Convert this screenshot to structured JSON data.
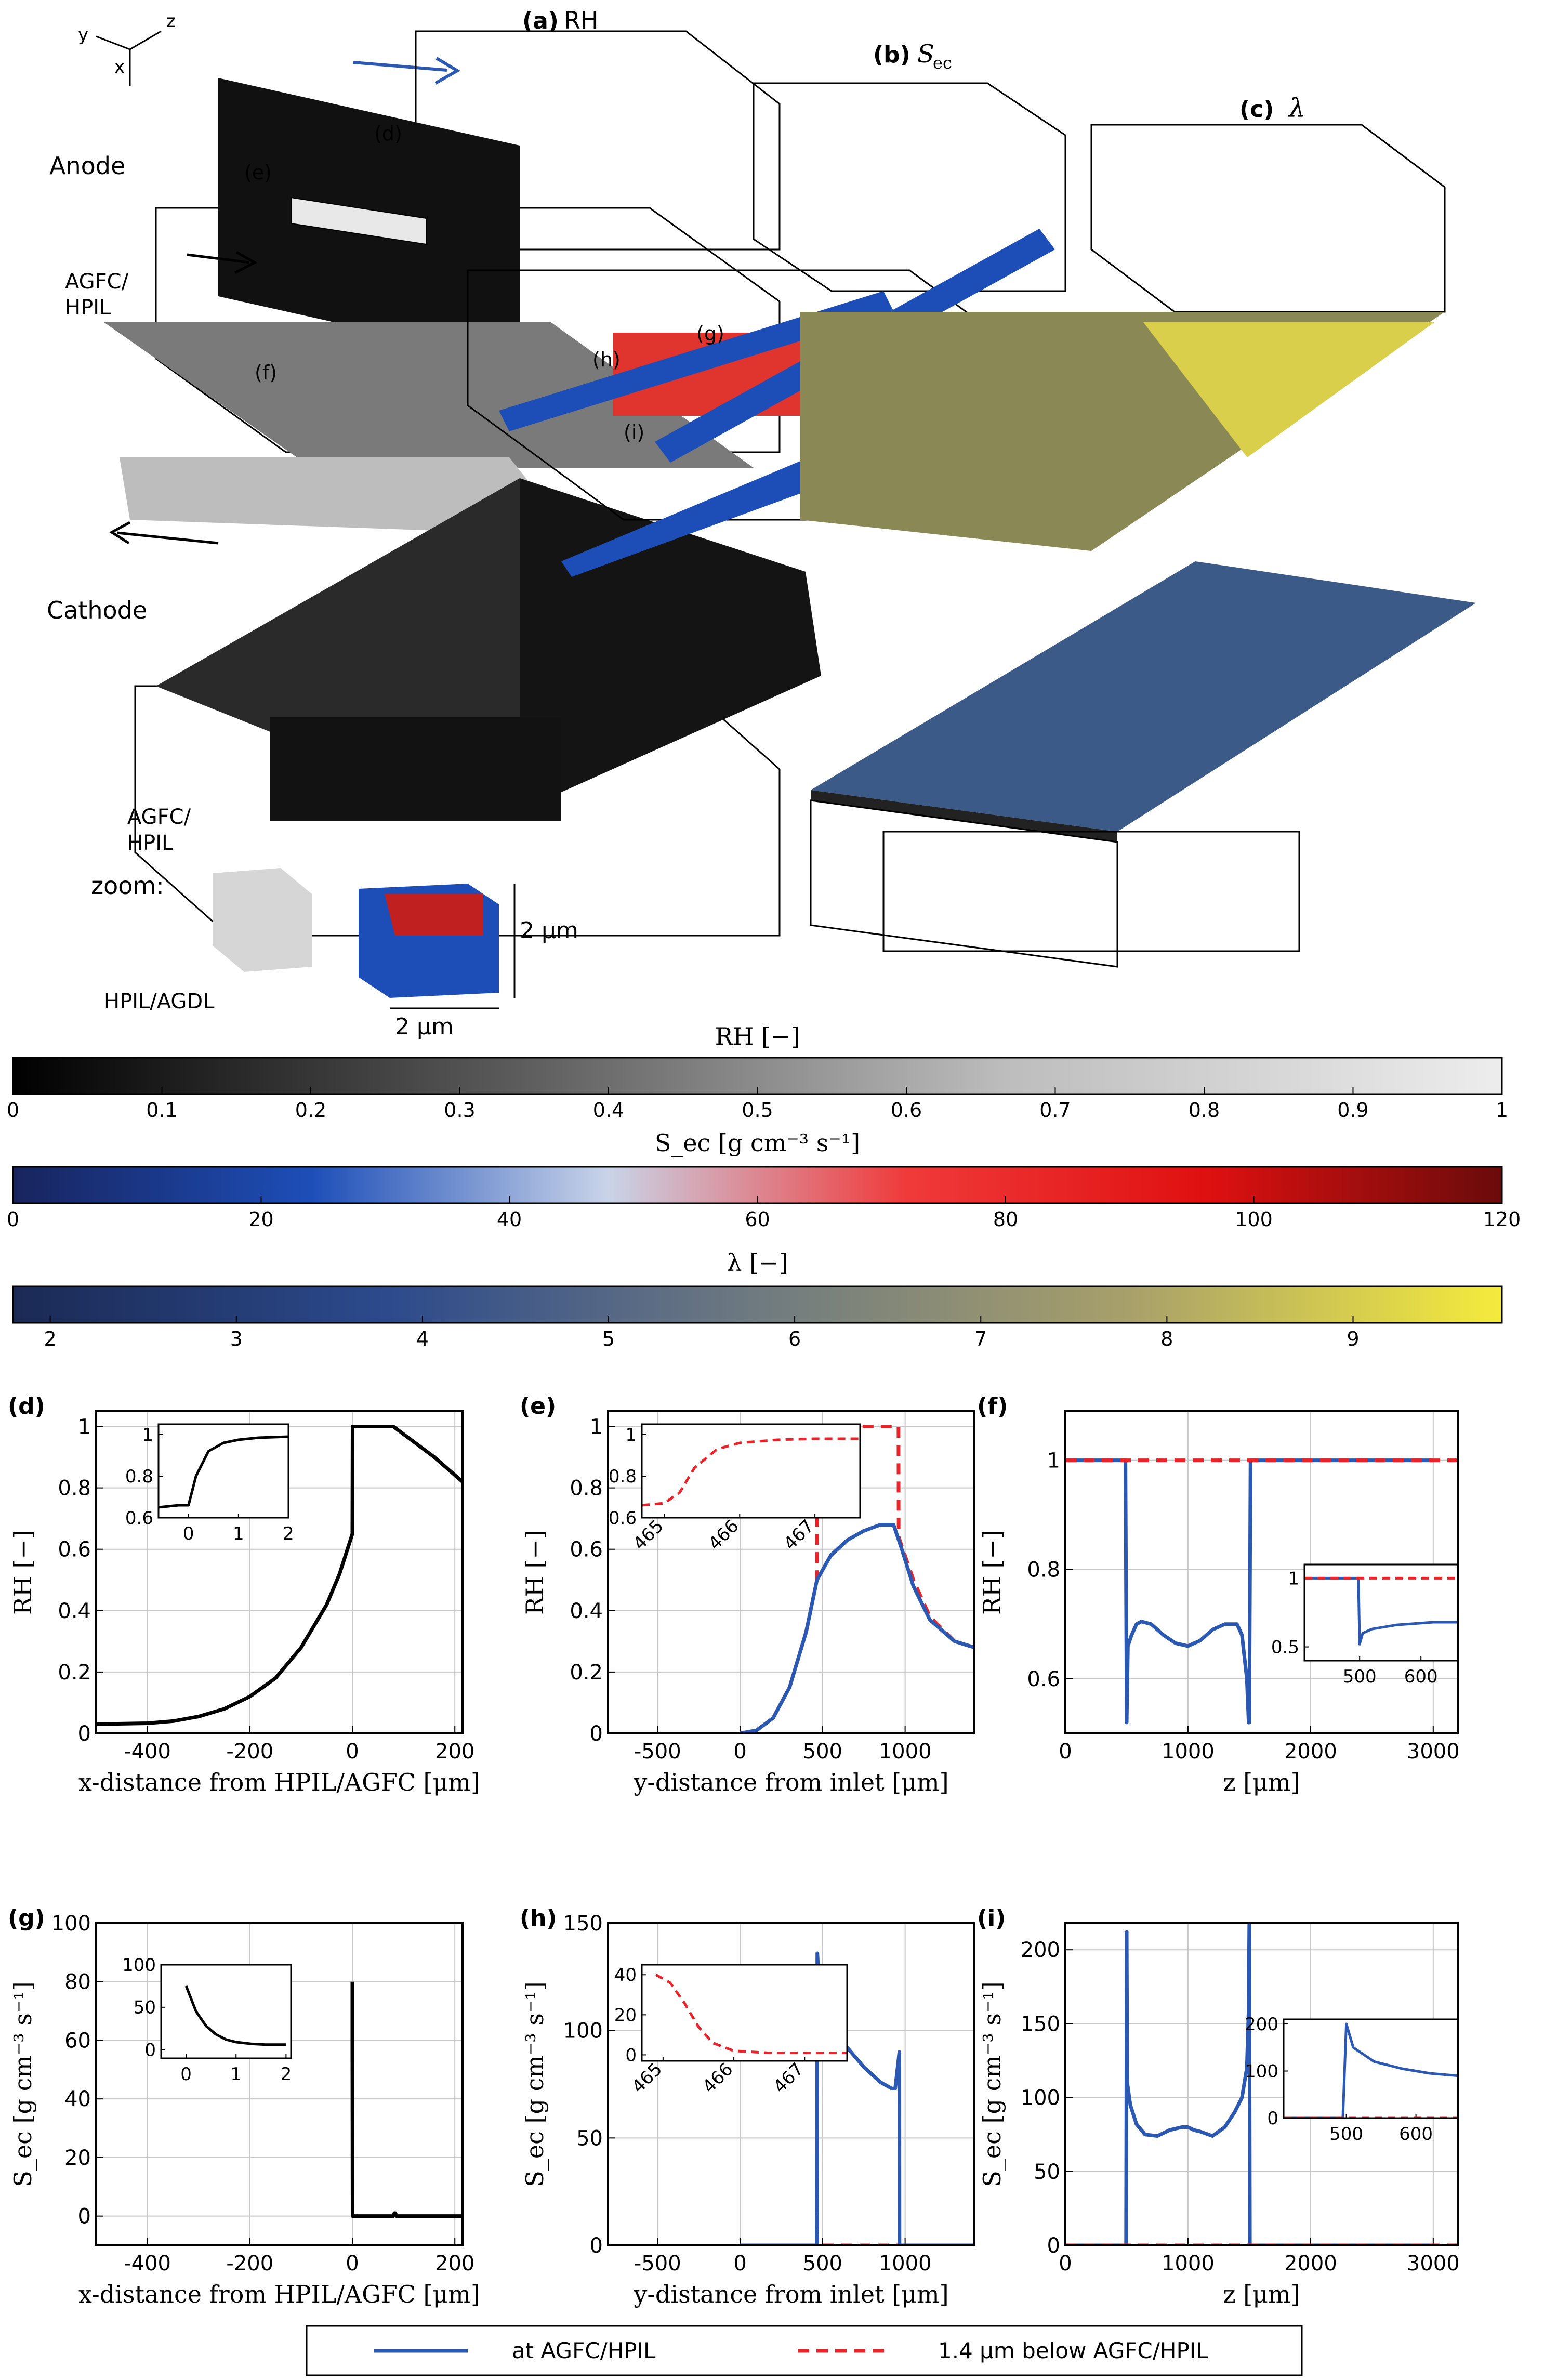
{
  "panels_3d": {
    "a": {
      "label": "(a)",
      "title": "RH"
    },
    "b": {
      "label": "(b)",
      "title": "S",
      "sub": "ec"
    },
    "c": {
      "label": "(c)",
      "title": "λ"
    }
  },
  "scene_labels": {
    "anode": "Anode",
    "agfc_hpil": [
      "AGFC/",
      "HPIL"
    ],
    "cathode": "Cathode",
    "zoom": "zoom:",
    "zoom_agfc": [
      "AGFC/",
      "HPIL"
    ],
    "zoom_hpil_agdl": "HPIL/AGDL",
    "scale_v": "2 μm",
    "scale_h": "2 μm",
    "slice_labels": [
      "(d)",
      "(e)",
      "(f)",
      "(g)",
      "(h)",
      "(i)"
    ],
    "axes_triad": [
      "y",
      "z",
      "x"
    ]
  },
  "colorbars": [
    {
      "title": "RH [−]",
      "ticks": [
        "0",
        "0.1",
        "0.2",
        "0.3",
        "0.4",
        "0.5",
        "0.6",
        "0.7",
        "0.8",
        "0.9",
        "1"
      ],
      "min": 0,
      "max": 1,
      "colors": [
        "#000000",
        "#5a5a5a",
        "#bdbdbd",
        "#ededed"
      ]
    },
    {
      "title": "S_ec [g cm⁻³ s⁻¹]",
      "ticks": [
        "0",
        "20",
        "40",
        "60",
        "80",
        "100",
        "120"
      ],
      "min": 0,
      "max": 120,
      "colors": [
        "#18245e",
        "#1d4eb8",
        "#c9d4e8",
        "#f03a3a",
        "#e01010",
        "#6a0b0b"
      ]
    },
    {
      "title": "λ [−]",
      "ticks": [
        "2",
        "3",
        "4",
        "5",
        "6",
        "7",
        "8",
        "9"
      ],
      "min": 1.8,
      "max": 9.8,
      "colors": [
        "#1b2a55",
        "#2c4a8c",
        "#6f7a80",
        "#a8a06a",
        "#f5eb3c"
      ]
    }
  ],
  "legend": {
    "entries": [
      {
        "label": "at AGFC/HPIL",
        "color": "#2b59b1",
        "style": "solid"
      },
      {
        "label": "1.4 μm below AGFC/HPIL",
        "color": "#e8242a",
        "style": "dashed"
      }
    ]
  },
  "chart_data": [
    {
      "id": "d",
      "label": "(d)",
      "type": "line",
      "xlabel": "x-distance from HPIL/AGFC [μm]",
      "ylabel": "RH [−]",
      "xlim": [
        -500,
        215
      ],
      "ylim": [
        0,
        1.05
      ],
      "xticks": [
        -400,
        -200,
        0,
        200
      ],
      "yticks": [
        0,
        0.2,
        0.4,
        0.6,
        0.8,
        1
      ],
      "yticklabels": [
        "0",
        "0.2",
        "0.4",
        "0.6",
        "0.8",
        "1"
      ],
      "series": [
        {
          "color": "#000000",
          "style": "solid",
          "x": [
            -500,
            -400,
            -350,
            -300,
            -250,
            -200,
            -150,
            -100,
            -50,
            -25,
            0,
            0.5,
            20,
            80,
            120,
            160,
            215
          ],
          "y": [
            0.03,
            0.033,
            0.04,
            0.055,
            0.08,
            0.12,
            0.18,
            0.28,
            0.42,
            0.52,
            0.65,
            1.0,
            1.0,
            1.0,
            0.95,
            0.9,
            0.82
          ]
        }
      ],
      "inset": {
        "xlim": [
          -0.6,
          2
        ],
        "ylim": [
          0.6,
          1.05
        ],
        "xticks": [
          0,
          1,
          2
        ],
        "yticks": [
          0.6,
          0.8,
          1
        ],
        "yticklabels": [
          "0.6",
          "0.8",
          "1"
        ],
        "series": [
          {
            "color": "#000000",
            "style": "solid",
            "x": [
              -0.6,
              -0.2,
              0,
              0.15,
              0.4,
              0.7,
              1.0,
              1.4,
              2.0
            ],
            "y": [
              0.65,
              0.66,
              0.66,
              0.8,
              0.92,
              0.96,
              0.975,
              0.985,
              0.99
            ]
          }
        ]
      }
    },
    {
      "id": "e",
      "label": "(e)",
      "type": "line",
      "xlabel": "y-distance from inlet [μm]",
      "ylabel": "RH [−]",
      "xlim": [
        -800,
        1420
      ],
      "ylim": [
        0,
        1.05
      ],
      "xticks": [
        -500,
        0,
        500,
        1000
      ],
      "yticks": [
        0,
        0.2,
        0.4,
        0.6,
        0.8,
        1
      ],
      "yticklabels": [
        "0",
        "0.2",
        "0.4",
        "0.6",
        "0.8",
        "1"
      ],
      "series": [
        {
          "color": "#e8242a",
          "style": "dashed",
          "x": [
            0,
            100,
            200,
            300,
            400,
            466,
            467,
            700,
            900,
            960,
            961,
            1050,
            1150,
            1300,
            1420
          ],
          "y": [
            0,
            0.01,
            0.05,
            0.15,
            0.33,
            0.5,
            1.0,
            1.0,
            1.0,
            1.0,
            0.64,
            0.5,
            0.38,
            0.3,
            0.28
          ]
        },
        {
          "color": "#2b59b1",
          "style": "solid",
          "x": [
            0,
            100,
            200,
            300,
            400,
            466,
            550,
            650,
            750,
            850,
            930,
            980,
            1050,
            1150,
            1300,
            1420
          ],
          "y": [
            0,
            0.01,
            0.05,
            0.15,
            0.33,
            0.5,
            0.58,
            0.63,
            0.66,
            0.68,
            0.68,
            0.6,
            0.48,
            0.37,
            0.3,
            0.28
          ]
        }
      ],
      "inset": {
        "xlim": [
          464.7,
          467.6
        ],
        "ylim": [
          0.6,
          1.05
        ],
        "xticks": [
          465,
          466,
          467
        ],
        "yticks": [
          0.6,
          0.8,
          1
        ],
        "yticklabels": [
          "0.6",
          "0.8",
          "1"
        ],
        "series": [
          {
            "color": "#e8242a",
            "style": "dashed",
            "x": [
              464.7,
              465.0,
              465.2,
              465.4,
              465.7,
              466.0,
              466.5,
              467.0,
              467.6
            ],
            "y": [
              0.66,
              0.67,
              0.72,
              0.84,
              0.93,
              0.96,
              0.975,
              0.98,
              0.98
            ]
          }
        ]
      }
    },
    {
      "id": "f",
      "label": "(f)",
      "type": "line",
      "xlabel": "z [μm]",
      "ylabel": "RH [−]",
      "xlim": [
        0,
        3200
      ],
      "ylim": [
        0.5,
        1.09
      ],
      "xticks": [
        0,
        1000,
        2000,
        3000
      ],
      "yticks": [
        0.6,
        0.8,
        1
      ],
      "yticklabels": [
        "0.6",
        "0.8",
        "1"
      ],
      "series": [
        {
          "color": "#2b59b1",
          "style": "solid",
          "x": [
            0,
            490,
            500,
            510,
            540,
            580,
            620,
            700,
            800,
            900,
            1000,
            1050,
            1100,
            1200,
            1300,
            1400,
            1440,
            1480,
            1495,
            1500,
            1510,
            3000
          ],
          "y": [
            1.0,
            1.0,
            0.52,
            0.66,
            0.68,
            0.7,
            0.705,
            0.7,
            0.68,
            0.665,
            0.66,
            0.665,
            0.67,
            0.69,
            0.7,
            0.7,
            0.68,
            0.6,
            0.52,
            0.52,
            1.0,
            1.0
          ]
        },
        {
          "color": "#e8242a",
          "style": "dashed",
          "x": [
            0,
            3200
          ],
          "y": [
            1.0,
            1.0
          ]
        }
      ],
      "inset": {
        "xlim": [
          410,
          660
        ],
        "ylim": [
          0.4,
          1.1
        ],
        "xticks": [
          500,
          600
        ],
        "yticks": [
          0.5,
          1
        ],
        "yticklabels": [
          "0.5",
          "1"
        ],
        "series": [
          {
            "color": "#2b59b1",
            "style": "solid",
            "x": [
              410,
              498,
              500,
              505,
              520,
              560,
              620,
              660
            ],
            "y": [
              1.0,
              1.0,
              0.52,
              0.6,
              0.63,
              0.66,
              0.68,
              0.68
            ]
          },
          {
            "color": "#e8242a",
            "style": "dashed",
            "x": [
              410,
              660
            ],
            "y": [
              1.0,
              1.0
            ]
          }
        ]
      }
    },
    {
      "id": "g",
      "label": "(g)",
      "type": "line",
      "xlabel": "x-distance from HPIL/AGFC [μm]",
      "ylabel": "S_ec [g cm⁻³ s⁻¹]",
      "xlim": [
        -500,
        215
      ],
      "ylim": [
        -10,
        100
      ],
      "xticks": [
        -400,
        -200,
        0,
        200
      ],
      "yticks": [
        0,
        20,
        40,
        60,
        80,
        100
      ],
      "yticklabels": [
        "0",
        "20",
        "40",
        "60",
        "80",
        "100"
      ],
      "series": [
        {
          "color": "#000000",
          "style": "solid",
          "x": [
            0,
            0,
            0.5,
            80,
            82,
            84,
            86,
            215
          ],
          "y": [
            80,
            60,
            0,
            0,
            1,
            1,
            0,
            0
          ]
        }
      ],
      "inset": {
        "xlim": [
          -0.5,
          2.1
        ],
        "ylim": [
          -10,
          100
        ],
        "xticks": [
          0,
          1,
          2
        ],
        "yticks": [
          0,
          50,
          100
        ],
        "yticklabels": [
          "0",
          "50",
          "100"
        ],
        "series": [
          {
            "color": "#000000",
            "style": "solid",
            "x": [
              0,
              0.2,
              0.4,
              0.6,
              0.8,
              1.0,
              1.3,
              1.6,
              2.0
            ],
            "y": [
              75,
              45,
              28,
              18,
              12,
              9,
              7,
              6,
              6
            ]
          }
        ]
      }
    },
    {
      "id": "h",
      "label": "(h)",
      "type": "line",
      "xlabel": "y-distance from inlet [μm]",
      "ylabel": "S_ec [g cm⁻³ s⁻¹]",
      "xlim": [
        -800,
        1420
      ],
      "ylim": [
        0,
        150
      ],
      "xticks": [
        -500,
        0,
        500,
        1000
      ],
      "yticks": [
        0,
        50,
        100,
        150
      ],
      "yticklabels": [
        "0",
        "50",
        "100",
        "150"
      ],
      "series": [
        {
          "color": "#e8242a",
          "style": "dashed",
          "x": [
            0,
            466,
            466,
            467,
            965,
            966,
            966,
            1420
          ],
          "y": [
            0,
            0,
            40,
            0,
            0,
            0,
            0,
            0
          ]
        },
        {
          "color": "#2b59b1",
          "style": "solid",
          "x": [
            0,
            465,
            468,
            480,
            520,
            580,
            650,
            750,
            850,
            920,
            940,
            955,
            965,
            966,
            1420
          ],
          "y": [
            0,
            0,
            136,
            118,
            110,
            100,
            92,
            83,
            76,
            73,
            73,
            83,
            90,
            0,
            0
          ]
        }
      ],
      "inset": {
        "xlim": [
          464.7,
          467.6
        ],
        "ylim": [
          -3,
          45
        ],
        "xticks": [
          465,
          466,
          467
        ],
        "yticks": [
          0,
          20,
          40
        ],
        "yticklabels": [
          "0",
          "20",
          "40"
        ],
        "series": [
          {
            "color": "#e8242a",
            "style": "dashed",
            "x": [
              464.9,
              465.1,
              465.3,
              465.5,
              465.7,
              466.0,
              466.5,
              467.6
            ],
            "y": [
              40,
              36,
              26,
              14,
              6,
              2,
              1,
              1
            ]
          }
        ]
      }
    },
    {
      "id": "i",
      "label": "(i)",
      "type": "line",
      "xlabel": "z [μm]",
      "ylabel": "S_ec [g cm⁻³ s⁻¹]",
      "xlim": [
        0,
        3200
      ],
      "ylim": [
        0,
        218
      ],
      "xticks": [
        0,
        1000,
        2000,
        3000
      ],
      "yticks": [
        0,
        50,
        100,
        150,
        200
      ],
      "yticklabels": [
        "0",
        "50",
        "100",
        "150",
        "200"
      ],
      "series": [
        {
          "color": "#2b59b1",
          "style": "solid",
          "x": [
            0,
            495,
            500,
            505,
            530,
            580,
            650,
            750,
            850,
            950,
            1000,
            1050,
            1100,
            1200,
            1300,
            1380,
            1440,
            1480,
            1495,
            1500,
            1505,
            3000
          ],
          "y": [
            0,
            0,
            212,
            110,
            95,
            82,
            75,
            74,
            78,
            80,
            80,
            78,
            77,
            74,
            80,
            90,
            100,
            120,
            160,
            218,
            0,
            0
          ]
        },
        {
          "color": "#e8242a",
          "style": "dashed",
          "x": [
            0,
            3200
          ],
          "y": [
            0,
            0
          ]
        }
      ],
      "inset": {
        "xlim": [
          410,
          660
        ],
        "ylim": [
          0,
          210
        ],
        "xticks": [
          500,
          600
        ],
        "yticks": [
          0,
          100,
          200
        ],
        "yticklabels": [
          "0",
          "100",
          "200"
        ],
        "series": [
          {
            "color": "#2b59b1",
            "style": "solid",
            "x": [
              410,
              495,
              500,
              510,
              540,
              580,
              620,
              660
            ],
            "y": [
              0,
              0,
              200,
              150,
              120,
              105,
              95,
              90
            ]
          },
          {
            "color": "#e8242a",
            "style": "dashed",
            "x": [
              410,
              660
            ],
            "y": [
              0,
              0
            ]
          }
        ]
      }
    }
  ]
}
